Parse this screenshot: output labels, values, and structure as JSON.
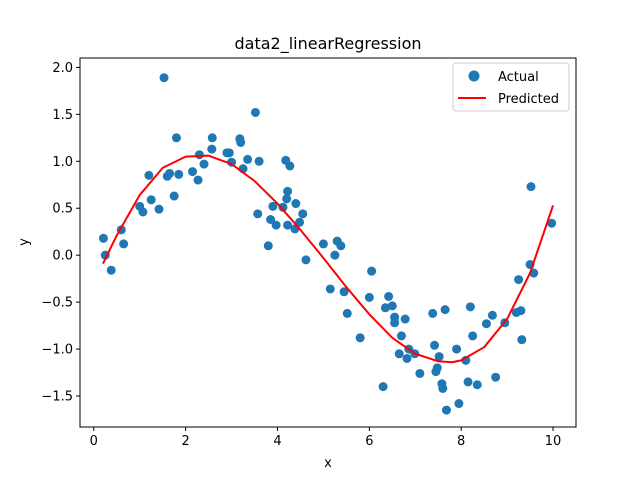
{
  "chart_data": {
    "type": "scatter",
    "title": "data2_linearRegression",
    "xlabel": "x",
    "ylabel": "y",
    "xlim": [
      -0.3,
      10.5
    ],
    "ylim": [
      -1.83,
      2.1
    ],
    "x_ticks": [
      0,
      2,
      4,
      6,
      8,
      10
    ],
    "x_tick_labels": [
      "0",
      "2",
      "4",
      "6",
      "8",
      "10"
    ],
    "y_ticks": [
      -1.5,
      -1.0,
      -0.5,
      0.0,
      0.5,
      1.0,
      1.5,
      2.0
    ],
    "y_tick_labels": [
      "−1.5",
      "−1.0",
      "−0.5",
      "0.0",
      "0.5",
      "1.0",
      "1.5",
      "2.0"
    ],
    "grid": false,
    "legend_position": "top-right",
    "series": [
      {
        "name": "Actual",
        "kind": "scatter",
        "color": "#1f77b4",
        "points": [
          [
            0.21,
            0.18
          ],
          [
            0.25,
            0.0
          ],
          [
            0.38,
            -0.16
          ],
          [
            0.6,
            0.27
          ],
          [
            0.65,
            0.12
          ],
          [
            1.0,
            0.52
          ],
          [
            1.07,
            0.46
          ],
          [
            1.2,
            0.85
          ],
          [
            1.25,
            0.59
          ],
          [
            1.42,
            0.49
          ],
          [
            1.53,
            1.89
          ],
          [
            1.6,
            0.84
          ],
          [
            1.65,
            0.87
          ],
          [
            1.75,
            0.63
          ],
          [
            1.8,
            1.25
          ],
          [
            1.85,
            0.86
          ],
          [
            2.15,
            0.89
          ],
          [
            2.27,
            0.8
          ],
          [
            2.3,
            1.07
          ],
          [
            2.4,
            0.97
          ],
          [
            2.57,
            1.13
          ],
          [
            2.58,
            1.25
          ],
          [
            2.9,
            1.09
          ],
          [
            2.95,
            1.09
          ],
          [
            3.0,
            0.99
          ],
          [
            3.18,
            1.24
          ],
          [
            3.2,
            1.2
          ],
          [
            3.25,
            0.92
          ],
          [
            3.35,
            1.02
          ],
          [
            3.52,
            1.52
          ],
          [
            3.57,
            0.44
          ],
          [
            3.6,
            1.0
          ],
          [
            3.8,
            0.1
          ],
          [
            3.85,
            0.38
          ],
          [
            3.9,
            0.52
          ],
          [
            3.97,
            0.32
          ],
          [
            4.12,
            0.51
          ],
          [
            4.18,
            1.01
          ],
          [
            4.2,
            0.6
          ],
          [
            4.22,
            0.68
          ],
          [
            4.22,
            0.32
          ],
          [
            4.27,
            0.95
          ],
          [
            4.38,
            0.28
          ],
          [
            4.4,
            0.55
          ],
          [
            4.48,
            0.35
          ],
          [
            4.55,
            0.44
          ],
          [
            4.62,
            -0.05
          ],
          [
            5.0,
            0.12
          ],
          [
            5.15,
            -0.36
          ],
          [
            5.25,
            0.0
          ],
          [
            5.3,
            0.15
          ],
          [
            5.38,
            0.1
          ],
          [
            5.45,
            -0.39
          ],
          [
            5.52,
            -0.62
          ],
          [
            5.8,
            -0.88
          ],
          [
            6.0,
            -0.45
          ],
          [
            6.05,
            -0.17
          ],
          [
            6.3,
            -1.4
          ],
          [
            6.35,
            -0.56
          ],
          [
            6.42,
            -0.44
          ],
          [
            6.5,
            -0.54
          ],
          [
            6.55,
            -0.66
          ],
          [
            6.55,
            -0.72
          ],
          [
            6.65,
            -1.05
          ],
          [
            6.7,
            -0.86
          ],
          [
            6.78,
            -0.68
          ],
          [
            6.82,
            -1.1
          ],
          [
            6.86,
            -1.0
          ],
          [
            6.99,
            -1.05
          ],
          [
            7.1,
            -1.26
          ],
          [
            7.38,
            -0.62
          ],
          [
            7.42,
            -0.96
          ],
          [
            7.45,
            -1.24
          ],
          [
            7.48,
            -1.2
          ],
          [
            7.52,
            -1.08
          ],
          [
            7.58,
            -1.37
          ],
          [
            7.6,
            -1.42
          ],
          [
            7.65,
            -0.58
          ],
          [
            7.68,
            -1.65
          ],
          [
            7.9,
            -1.0
          ],
          [
            7.95,
            -1.58
          ],
          [
            8.1,
            -1.12
          ],
          [
            8.15,
            -1.35
          ],
          [
            8.2,
            -0.55
          ],
          [
            8.25,
            -0.86
          ],
          [
            8.35,
            -1.38
          ],
          [
            8.55,
            -0.73
          ],
          [
            8.68,
            -0.64
          ],
          [
            8.75,
            -1.3
          ],
          [
            8.95,
            -0.72
          ],
          [
            9.2,
            -0.61
          ],
          [
            9.25,
            -0.26
          ],
          [
            9.3,
            -0.59
          ],
          [
            9.32,
            -0.9
          ],
          [
            9.5,
            -0.1
          ],
          [
            9.52,
            0.73
          ],
          [
            9.58,
            -0.19
          ],
          [
            9.97,
            0.34
          ]
        ]
      },
      {
        "name": "Predicted",
        "kind": "line",
        "color": "#ff0000",
        "points": [
          [
            0.2,
            -0.09
          ],
          [
            0.5,
            0.21
          ],
          [
            1.0,
            0.64
          ],
          [
            1.5,
            0.93
          ],
          [
            2.0,
            1.05
          ],
          [
            2.5,
            1.06
          ],
          [
            3.0,
            0.97
          ],
          [
            3.5,
            0.79
          ],
          [
            4.0,
            0.55
          ],
          [
            4.5,
            0.27
          ],
          [
            5.0,
            -0.03
          ],
          [
            5.5,
            -0.34
          ],
          [
            6.0,
            -0.63
          ],
          [
            6.5,
            -0.88
          ],
          [
            7.0,
            -1.05
          ],
          [
            7.5,
            -1.13
          ],
          [
            7.8,
            -1.14
          ],
          [
            8.0,
            -1.12
          ],
          [
            8.5,
            -0.98
          ],
          [
            9.0,
            -0.68
          ],
          [
            9.5,
            -0.19
          ],
          [
            10.0,
            0.53
          ]
        ]
      }
    ]
  }
}
